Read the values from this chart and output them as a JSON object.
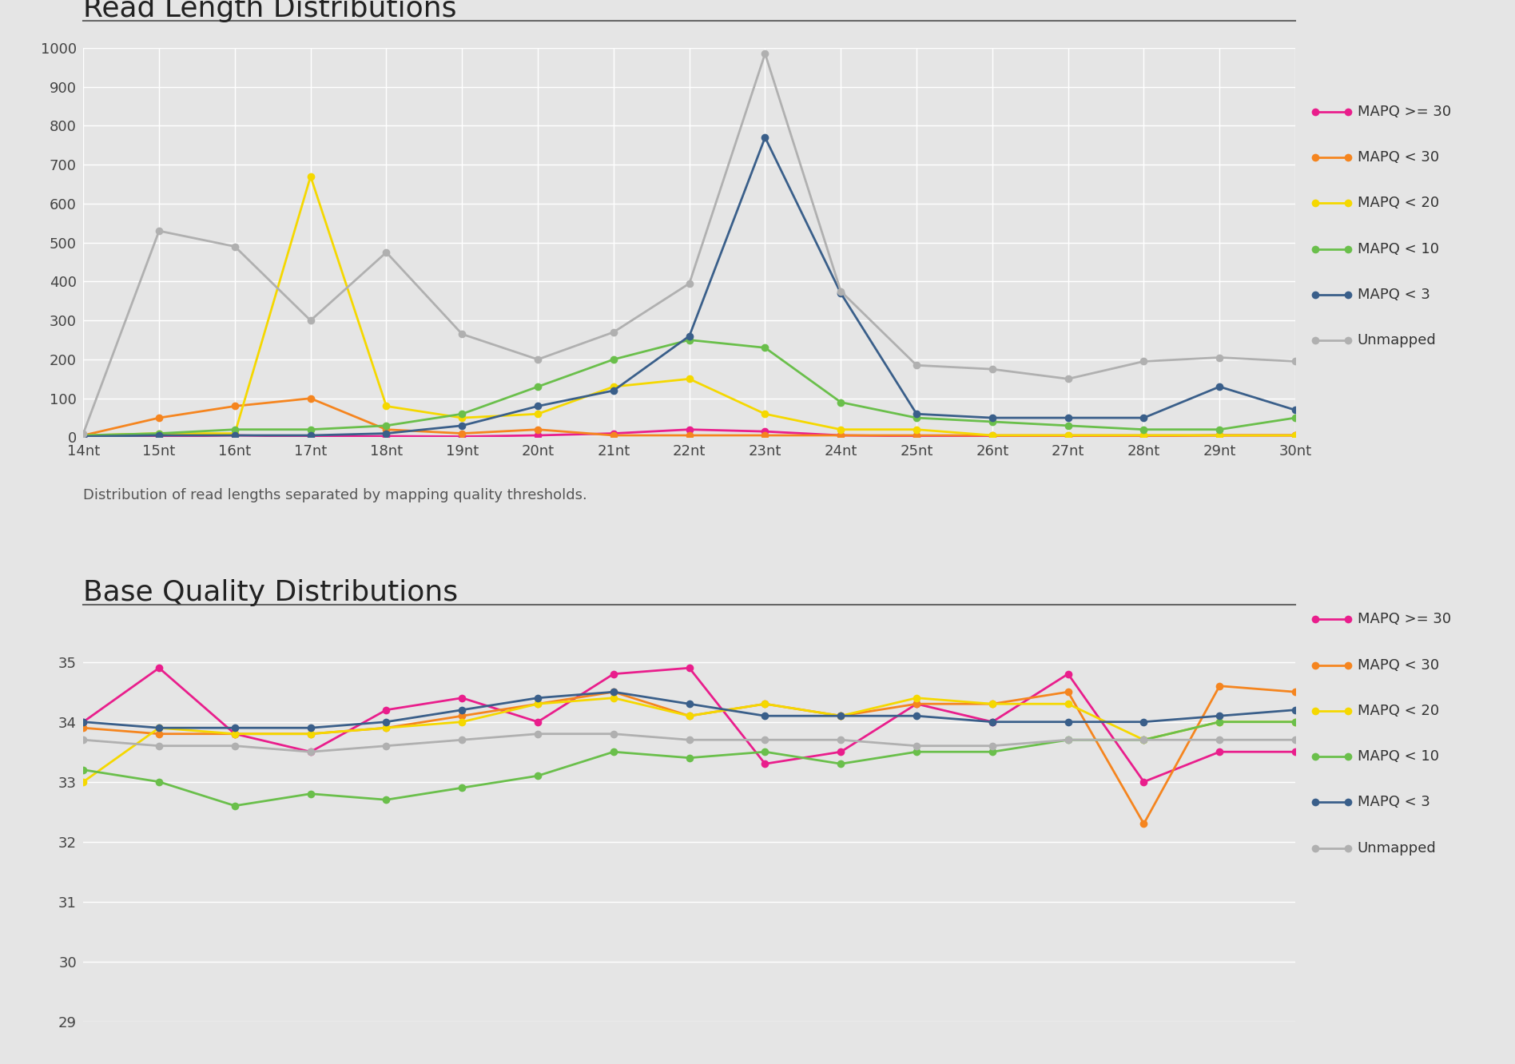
{
  "x_labels": [
    "14nt",
    "15nt",
    "16nt",
    "17nt",
    "18nt",
    "19nt",
    "20nt",
    "21nt",
    "22nt",
    "23nt",
    "24nt",
    "25nt",
    "26nt",
    "27nt",
    "28nt",
    "29nt",
    "30nt"
  ],
  "x_vals": [
    14,
    15,
    16,
    17,
    18,
    19,
    20,
    21,
    22,
    23,
    24,
    25,
    26,
    27,
    28,
    29,
    30
  ],
  "rl_data": {
    "mapq_ge30": [
      0,
      2,
      5,
      2,
      3,
      2,
      5,
      10,
      20,
      15,
      5,
      3,
      2,
      2,
      3,
      5,
      5
    ],
    "mapq_lt30": [
      5,
      50,
      80,
      100,
      20,
      10,
      20,
      5,
      5,
      5,
      5,
      5,
      5,
      5,
      5,
      5,
      5
    ],
    "mapq_lt20": [
      5,
      10,
      10,
      670,
      80,
      50,
      60,
      130,
      150,
      60,
      20,
      20,
      5,
      5,
      5,
      5,
      5
    ],
    "mapq_lt10": [
      5,
      10,
      20,
      20,
      30,
      60,
      130,
      200,
      250,
      230,
      90,
      50,
      40,
      30,
      20,
      20,
      50
    ],
    "mapq_lt3": [
      2,
      5,
      5,
      5,
      10,
      30,
      80,
      120,
      260,
      770,
      370,
      60,
      50,
      50,
      50,
      130,
      70
    ],
    "unmapped": [
      10,
      530,
      490,
      300,
      475,
      265,
      200,
      270,
      395,
      985,
      375,
      185,
      175,
      150,
      195,
      205,
      195
    ]
  },
  "bq_data": {
    "mapq_ge30": [
      34.0,
      34.9,
      33.8,
      33.5,
      34.2,
      34.4,
      34.0,
      34.8,
      34.9,
      33.3,
      33.5,
      34.3,
      34.0,
      34.8,
      33.0,
      33.5,
      33.5
    ],
    "mapq_lt30": [
      33.9,
      33.8,
      33.8,
      33.8,
      33.9,
      34.1,
      34.3,
      34.5,
      34.1,
      34.3,
      34.1,
      34.3,
      34.3,
      34.5,
      32.3,
      34.6,
      34.5
    ],
    "mapq_lt20": [
      33.0,
      33.9,
      33.8,
      33.8,
      33.9,
      34.0,
      34.3,
      34.4,
      34.1,
      34.3,
      34.1,
      34.4,
      34.3,
      34.3,
      33.7,
      34.0,
      34.0
    ],
    "mapq_lt10": [
      33.2,
      33.0,
      32.6,
      32.8,
      32.7,
      32.9,
      33.1,
      33.5,
      33.4,
      33.5,
      33.3,
      33.5,
      33.5,
      33.7,
      33.7,
      34.0,
      34.0
    ],
    "mapq_lt3": [
      34.0,
      33.9,
      33.9,
      33.9,
      34.0,
      34.2,
      34.4,
      34.5,
      34.3,
      34.1,
      34.1,
      34.1,
      34.0,
      34.0,
      34.0,
      34.1,
      34.2
    ],
    "unmapped": [
      33.7,
      33.6,
      33.6,
      33.5,
      33.6,
      33.7,
      33.8,
      33.8,
      33.7,
      33.7,
      33.7,
      33.6,
      33.6,
      33.7,
      33.7,
      33.7,
      33.7
    ]
  },
  "colors": {
    "mapq_ge30": "#e91e8c",
    "mapq_lt30": "#f5851f",
    "mapq_lt20": "#f5d800",
    "mapq_lt10": "#6abf4b",
    "mapq_lt3": "#3a5f8a",
    "unmapped": "#b0b0b0"
  },
  "legend_labels": {
    "mapq_ge30": "MAPQ >= 30",
    "mapq_lt30": "MAPQ < 30",
    "mapq_lt20": "MAPQ < 20",
    "mapq_lt10": "MAPQ < 10",
    "mapq_lt3": "MAPQ < 3",
    "unmapped": "Unmapped"
  },
  "title1": "Read Length Distributions",
  "title2": "Base Quality Distributions",
  "caption1": "Distribution of read lengths separated by mapping quality thresholds.",
  "bg_color": "#e5e5e5",
  "plot_bg": "#e5e5e5",
  "rl_yticks": [
    0,
    100,
    200,
    300,
    400,
    500,
    600,
    700,
    800,
    900,
    1000
  ],
  "bq_yticks": [
    29,
    30,
    31,
    32,
    33,
    34,
    35
  ]
}
